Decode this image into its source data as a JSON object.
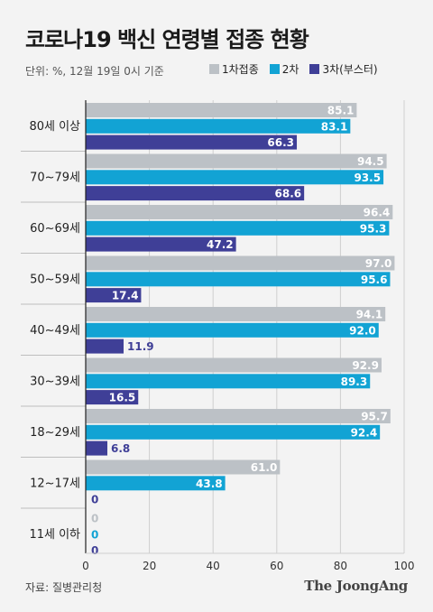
{
  "title": "코로나19 백신 연령별 접종 현황",
  "unit_note": "단위: %, 12월 19일 0시 기준",
  "source": "자료: 질병관리청",
  "logo": "The JoongAng",
  "colors": {
    "first_dose": "#bcc1c6",
    "second_dose": "#12a3d4",
    "booster": "#3f3f97",
    "grid": "#cfcfcf",
    "axis": "#222222"
  },
  "chart_data": {
    "type": "bar",
    "orientation": "horizontal",
    "categories": [
      "80세 이상",
      "70~79세",
      "60~69세",
      "50~59세",
      "40~49세",
      "30~39세",
      "18~29세",
      "12~17세",
      "11세 이하"
    ],
    "series": [
      {
        "name": "1차접종",
        "color": "#bcc1c6",
        "values": [
          85.1,
          94.5,
          96.4,
          97.0,
          94.1,
          92.9,
          95.7,
          61.0,
          0
        ],
        "labels": [
          "85.1",
          "94.5",
          "96.4",
          "97.0",
          "94.1",
          "92.9",
          "95.7",
          "61.0",
          "0"
        ]
      },
      {
        "name": "2차",
        "color": "#12a3d4",
        "values": [
          83.1,
          93.5,
          95.3,
          95.6,
          92.0,
          89.3,
          92.4,
          43.8,
          0
        ],
        "labels": [
          "83.1",
          "93.5",
          "95.3",
          "95.6",
          "92.0",
          "89.3",
          "92.4",
          "43.8",
          "0"
        ]
      },
      {
        "name": "3차(부스터)",
        "color": "#3f3f97",
        "values": [
          66.3,
          68.6,
          47.2,
          17.4,
          11.9,
          16.5,
          6.8,
          0,
          0
        ],
        "labels": [
          "66.3",
          "68.6",
          "47.2",
          "17.4",
          "11.9",
          "16.5",
          "6.8",
          "0",
          "0"
        ]
      }
    ],
    "xlim": [
      0,
      100
    ],
    "xticks": [
      "0",
      "20",
      "40",
      "60",
      "80",
      "100"
    ],
    "grid": true,
    "legend_position": "top-right"
  }
}
